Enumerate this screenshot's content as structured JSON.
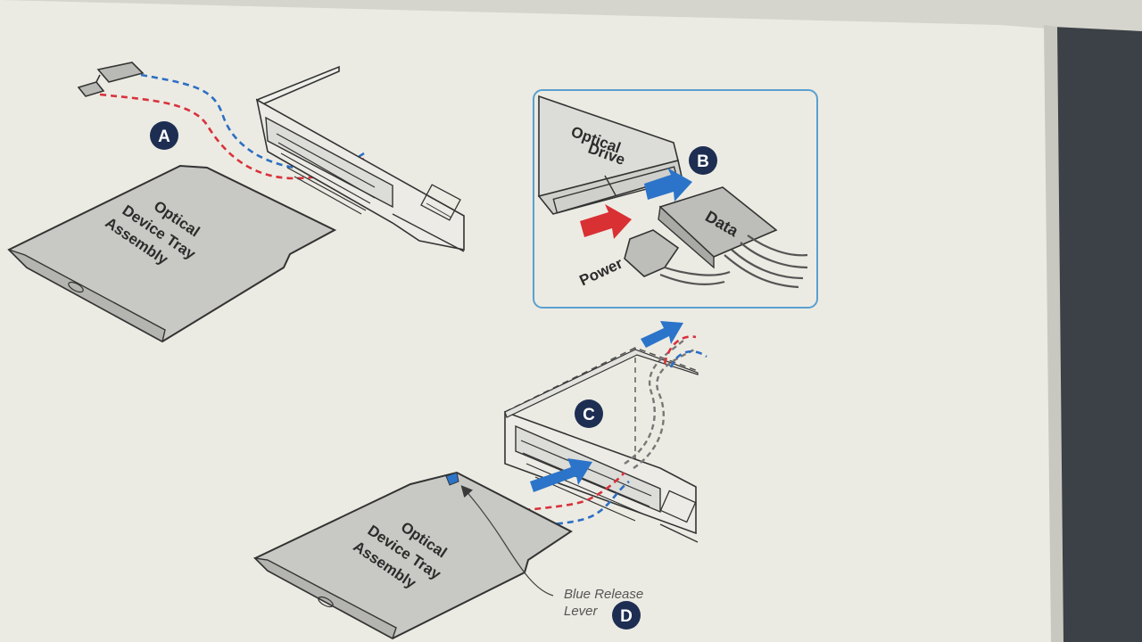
{
  "colors": {
    "paper": "#ecebe3",
    "bezel": "#3b4146",
    "badge": "#1d2e52",
    "panel_border": "#5aa0cf",
    "power_cable": "#d8323c",
    "data_cable": "#2c6fc4",
    "arrow_blue": "#2c74c9",
    "arrow_red": "#d93034",
    "device_fill": "#c8c8c4",
    "line": "#3a3a3a"
  },
  "steps": {
    "a": {
      "badge": "A"
    },
    "b": {
      "badge": "B"
    },
    "c": {
      "badge": "C"
    },
    "d": {
      "badge": "D"
    }
  },
  "tray_top": {
    "line1": "Optical",
    "line2": "Device Tray",
    "line3": "Assembly"
  },
  "tray_bottom": {
    "line1": "Optical",
    "line2": "Device Tray",
    "line3": "Assembly"
  },
  "detail_panel": {
    "drive_line1": "Optical",
    "drive_line2": "Drive",
    "data_label": "Data",
    "power_label": "Power"
  },
  "release_lever": {
    "line1": "Blue Release",
    "line2": "Lever"
  },
  "icons": [
    "insert-arrow-icon",
    "power-arrow-icon",
    "data-arrow-icon",
    "cable-route-arrow-icon"
  ]
}
